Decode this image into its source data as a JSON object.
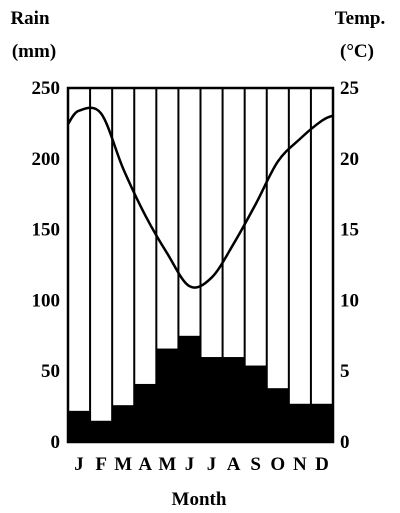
{
  "chart_data": {
    "type": "bar",
    "title": "",
    "xlabel": "Month",
    "ylabel_left": [
      "Rain",
      "(mm)"
    ],
    "ylabel_right": [
      "Temp.",
      "(°C)"
    ],
    "categories": [
      "J",
      "F",
      "M",
      "A",
      "M",
      "J",
      "J",
      "A",
      "S",
      "O",
      "N",
      "D"
    ],
    "ylim_left": [
      0,
      250
    ],
    "ylim_right": [
      0,
      25
    ],
    "yticks_left": [
      "0",
      "50",
      "100",
      "150",
      "200",
      "250"
    ],
    "yticks_right": [
      "0",
      "5",
      "10",
      "15",
      "20",
      "25"
    ],
    "grid": "vertical lines between months",
    "series": [
      {
        "type": "bar",
        "axis": "left",
        "color": "#000000",
        "values": [
          22,
          15,
          26,
          41,
          66,
          75,
          60,
          60,
          54,
          38,
          27,
          27
        ]
      },
      {
        "type": "line",
        "axis": "right",
        "color": "#000000",
        "values": [
          23.4,
          23.2,
          19.3,
          16.0,
          13.3,
          11.0,
          11.6,
          14.0,
          16.8,
          19.8,
          21.4,
          22.7
        ]
      }
    ]
  }
}
